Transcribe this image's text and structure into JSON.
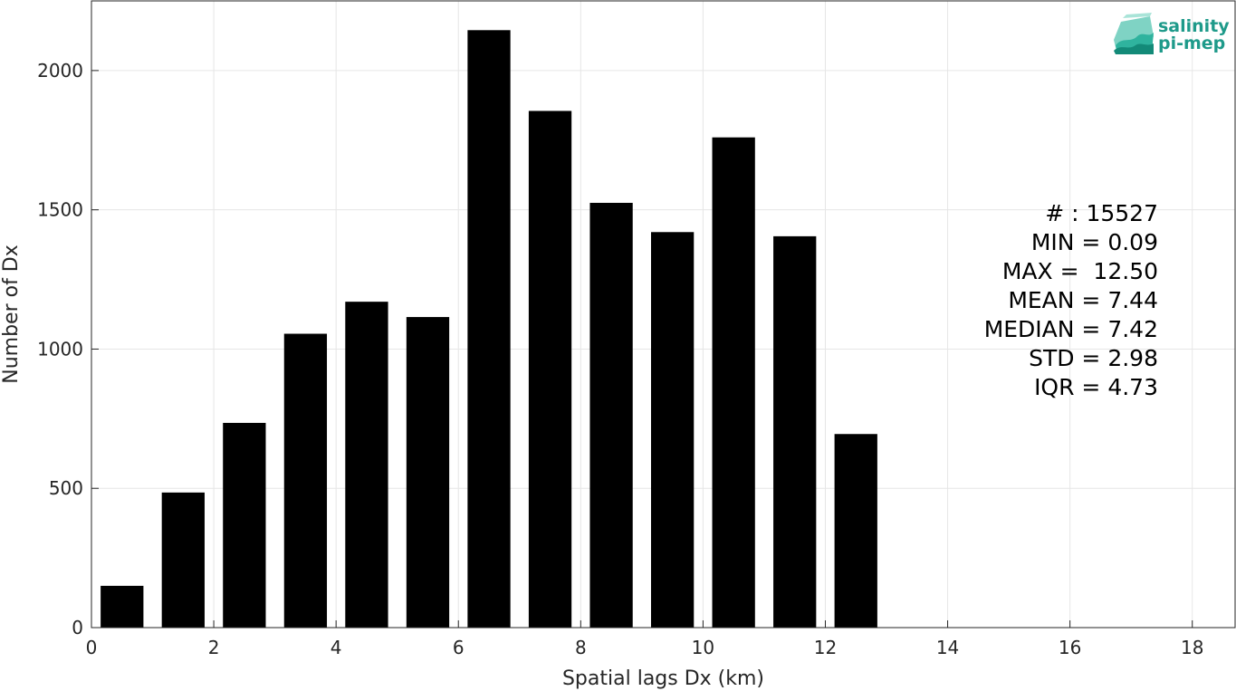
{
  "chart_data": {
    "type": "bar",
    "x": [
      0.5,
      1.5,
      2.5,
      3.5,
      4.5,
      5.5,
      6.5,
      7.5,
      8.5,
      9.5,
      10.5,
      11.5,
      12.5
    ],
    "values": [
      150,
      485,
      735,
      1055,
      1170,
      1115,
      2145,
      1855,
      1525,
      1420,
      1760,
      1405,
      695
    ],
    "bar_width": 0.7,
    "xlabel": "Spatial lags Dx (km)",
    "ylabel": "Number of Dx",
    "xlim": [
      0,
      18.7
    ],
    "ylim": [
      0,
      2250
    ],
    "xticks": [
      0,
      2,
      4,
      6,
      8,
      10,
      12,
      14,
      16,
      18
    ],
    "yticks": [
      0,
      500,
      1000,
      1500,
      2000
    ],
    "grid": true,
    "bar_color": "#000000",
    "annotations": [
      "# : 15527",
      "MIN = 0.09",
      "MAX =  12.50",
      "MEAN = 7.44",
      "MEDIAN = 7.42",
      "STD = 2.98",
      "IQR = 4.73"
    ]
  },
  "logo": {
    "line1": "salinity",
    "line2": "pi-mep",
    "color": "#1e9a8a"
  }
}
